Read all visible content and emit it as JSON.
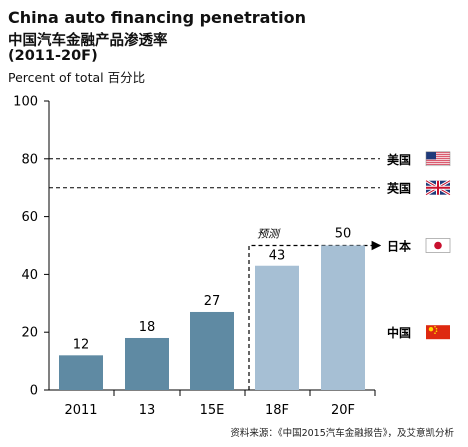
{
  "chart_data": {
    "type": "bar",
    "title": "China auto financing penetration",
    "subtitle": "中国汽车金融产品渗透率",
    "period": "(2011-20F)",
    "ylabel": "Percent of total 百分比",
    "categories": [
      "2011",
      "13",
      "15E",
      "18F",
      "20F"
    ],
    "values": [
      12,
      18,
      27,
      43,
      50
    ],
    "ylim": [
      0,
      100
    ],
    "yticks": [
      0,
      20,
      40,
      60,
      80,
      100
    ],
    "bar_colors": [
      "#5f8aa3",
      "#5f8aa3",
      "#5f8aa3",
      "#a6bfd4",
      "#a6bfd4"
    ],
    "forecast_label": "预测",
    "forecast_categories": [
      "18F",
      "20F"
    ],
    "grid": false,
    "reference_lines": [
      {
        "value": 80,
        "label": "美国",
        "flag": "us-flag"
      },
      {
        "value": 70,
        "label": "英国",
        "flag": "uk-flag"
      },
      {
        "value": 50,
        "label": "日本",
        "flag": "japan-flag"
      }
    ],
    "china_marker": {
      "label": "中国",
      "flag": "china-flag"
    },
    "source": "资料来源：《中国2015汽车金融报告》，及艾意凯分析"
  }
}
